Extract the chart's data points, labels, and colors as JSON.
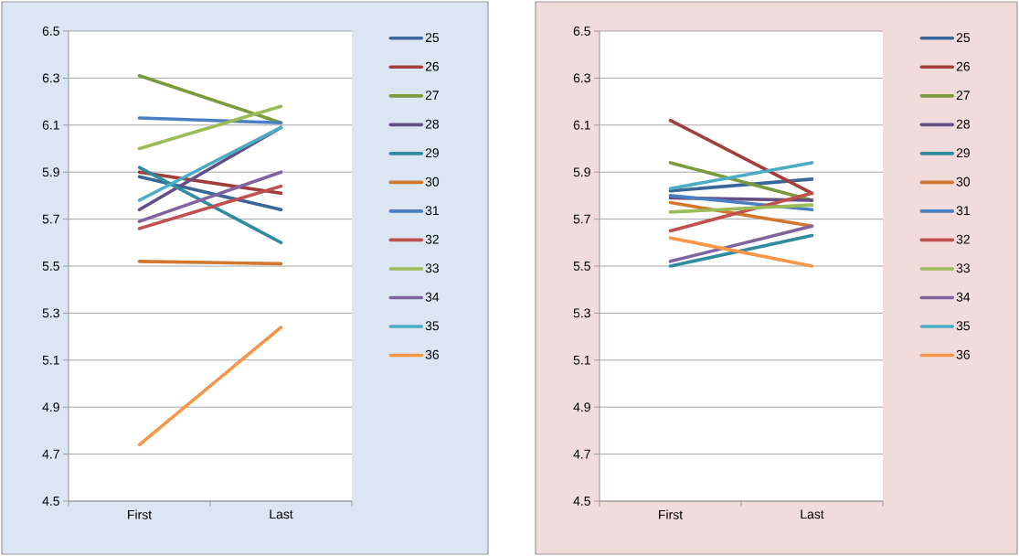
{
  "chart_data": [
    {
      "type": "line",
      "categories": [
        "First",
        "Last"
      ],
      "ylim": [
        4.5,
        6.5
      ],
      "yticks": [
        4.5,
        4.7,
        4.9,
        5.1,
        5.3,
        5.5,
        5.7,
        5.9,
        6.1,
        6.3,
        6.5
      ],
      "grid": "y",
      "legend": "right",
      "marker": "none",
      "line_style": "solid",
      "series": [
        {
          "name": "25",
          "color": "#3b6699",
          "values": [
            5.88,
            5.74
          ]
        },
        {
          "name": "26",
          "color": "#a33d3a",
          "values": [
            5.9,
            5.81
          ]
        },
        {
          "name": "27",
          "color": "#7a9a3c",
          "values": [
            6.31,
            6.11
          ]
        },
        {
          "name": "28",
          "color": "#654e85",
          "values": [
            5.74,
            6.09
          ]
        },
        {
          "name": "29",
          "color": "#2f8c9e",
          "values": [
            5.92,
            5.6
          ]
        },
        {
          "name": "30",
          "color": "#d2782e",
          "values": [
            5.52,
            5.51
          ]
        },
        {
          "name": "31",
          "color": "#4a7fc1",
          "values": [
            6.13,
            6.11
          ]
        },
        {
          "name": "32",
          "color": "#c0504d",
          "values": [
            5.66,
            5.84
          ]
        },
        {
          "name": "33",
          "color": "#9bbb59",
          "values": [
            6.0,
            6.18
          ]
        },
        {
          "name": "34",
          "color": "#8064a2",
          "values": [
            5.69,
            5.9
          ]
        },
        {
          "name": "35",
          "color": "#4bacc6",
          "values": [
            5.78,
            6.09
          ]
        },
        {
          "name": "36",
          "color": "#f79646",
          "values": [
            4.74,
            5.24
          ]
        }
      ]
    },
    {
      "type": "line",
      "categories": [
        "First",
        "Last"
      ],
      "ylim": [
        4.5,
        6.5
      ],
      "yticks": [
        4.5,
        4.7,
        4.9,
        5.1,
        5.3,
        5.5,
        5.7,
        5.9,
        6.1,
        6.3,
        6.5
      ],
      "grid": "y",
      "legend": "right",
      "marker": "none",
      "line_style": "solid",
      "series": [
        {
          "name": "25",
          "color": "#3b6699",
          "values": [
            5.82,
            5.87
          ]
        },
        {
          "name": "26",
          "color": "#a33d3a",
          "values": [
            6.12,
            5.81
          ]
        },
        {
          "name": "27",
          "color": "#7a9a3c",
          "values": [
            5.94,
            5.78
          ]
        },
        {
          "name": "28",
          "color": "#654e85",
          "values": [
            5.79,
            5.78
          ]
        },
        {
          "name": "29",
          "color": "#2f8c9e",
          "values": [
            5.5,
            5.63
          ]
        },
        {
          "name": "30",
          "color": "#d2782e",
          "values": [
            5.77,
            5.67
          ]
        },
        {
          "name": "31",
          "color": "#4a7fc1",
          "values": [
            5.8,
            5.74
          ]
        },
        {
          "name": "32",
          "color": "#c0504d",
          "values": [
            5.65,
            5.81
          ]
        },
        {
          "name": "33",
          "color": "#9bbb59",
          "values": [
            5.73,
            5.76
          ]
        },
        {
          "name": "34",
          "color": "#8064a2",
          "values": [
            5.52,
            5.67
          ]
        },
        {
          "name": "35",
          "color": "#4bacc6",
          "values": [
            5.83,
            5.94
          ]
        },
        {
          "name": "36",
          "color": "#f79646",
          "values": [
            5.62,
            5.5
          ]
        }
      ]
    }
  ]
}
